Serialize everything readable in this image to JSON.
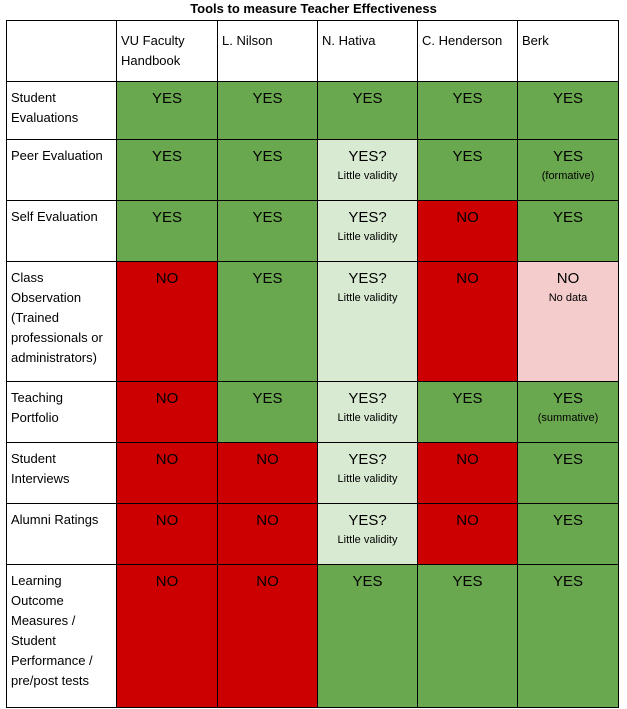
{
  "title": "Tools to measure Teacher Effectiveness",
  "columns": [
    "VU Faculty Handbook",
    "L. Nilson",
    "N. Hativa",
    "C. Henderson",
    "Berk"
  ],
  "rows": [
    {
      "label": "Student Evaluations",
      "cells": [
        {
          "main": "YES",
          "status": "yes"
        },
        {
          "main": "YES",
          "status": "yes"
        },
        {
          "main": "YES",
          "status": "yes"
        },
        {
          "main": "YES",
          "status": "yes"
        },
        {
          "main": "YES",
          "status": "yes"
        }
      ]
    },
    {
      "label": "Peer Evaluation",
      "cells": [
        {
          "main": "YES",
          "status": "yes"
        },
        {
          "main": "YES",
          "status": "yes"
        },
        {
          "main": "YES?",
          "sub": "Little validity",
          "status": "maybe"
        },
        {
          "main": "YES",
          "status": "yes"
        },
        {
          "main": "YES",
          "sub": "(formative)",
          "status": "yes"
        }
      ]
    },
    {
      "label": "Self Evaluation",
      "cells": [
        {
          "main": "YES",
          "status": "yes"
        },
        {
          "main": "YES",
          "status": "yes"
        },
        {
          "main": "YES?",
          "sub": "Little validity",
          "status": "maybe"
        },
        {
          "main": "NO",
          "status": "no"
        },
        {
          "main": "YES",
          "status": "yes"
        }
      ]
    },
    {
      "label": "Class Observation (Trained professionals or administrators)",
      "cells": [
        {
          "main": "NO",
          "status": "no"
        },
        {
          "main": "YES",
          "status": "yes"
        },
        {
          "main": "YES?",
          "sub": "Little validity",
          "status": "maybe"
        },
        {
          "main": "NO",
          "status": "no"
        },
        {
          "main": "NO",
          "sub": "No data",
          "status": "nodata"
        }
      ]
    },
    {
      "label": "Teaching Portfolio",
      "cells": [
        {
          "main": "NO",
          "status": "no"
        },
        {
          "main": "YES",
          "status": "yes"
        },
        {
          "main": "YES?",
          "sub": "Little validity",
          "status": "maybe"
        },
        {
          "main": "YES",
          "status": "yes"
        },
        {
          "main": "YES",
          "sub": "(summative)",
          "status": "yes"
        }
      ]
    },
    {
      "label": "Student Interviews",
      "cells": [
        {
          "main": "NO",
          "status": "no"
        },
        {
          "main": "NO",
          "status": "no"
        },
        {
          "main": "YES?",
          "sub": "Little validity",
          "status": "maybe"
        },
        {
          "main": "NO",
          "status": "no"
        },
        {
          "main": "YES",
          "status": "yes"
        }
      ]
    },
    {
      "label": "Alumni Ratings",
      "cells": [
        {
          "main": "NO",
          "status": "no"
        },
        {
          "main": "NO",
          "status": "no"
        },
        {
          "main": "YES?",
          "sub": "Little validity",
          "status": "maybe"
        },
        {
          "main": "NO",
          "status": "no"
        },
        {
          "main": "YES",
          "status": "yes"
        }
      ]
    },
    {
      "label": "Learning Outcome Measures / Student Performance / pre/post tests",
      "cells": [
        {
          "main": "NO",
          "status": "no"
        },
        {
          "main": "NO",
          "status": "no"
        },
        {
          "main": "YES",
          "status": "yes"
        },
        {
          "main": "YES",
          "status": "yes"
        },
        {
          "main": "YES",
          "status": "yes"
        }
      ]
    }
  ],
  "status_colors": {
    "yes": "#6aa84f",
    "maybe": "#d9ead3",
    "no": "#cc0000",
    "nodata": "#f4cccc"
  }
}
